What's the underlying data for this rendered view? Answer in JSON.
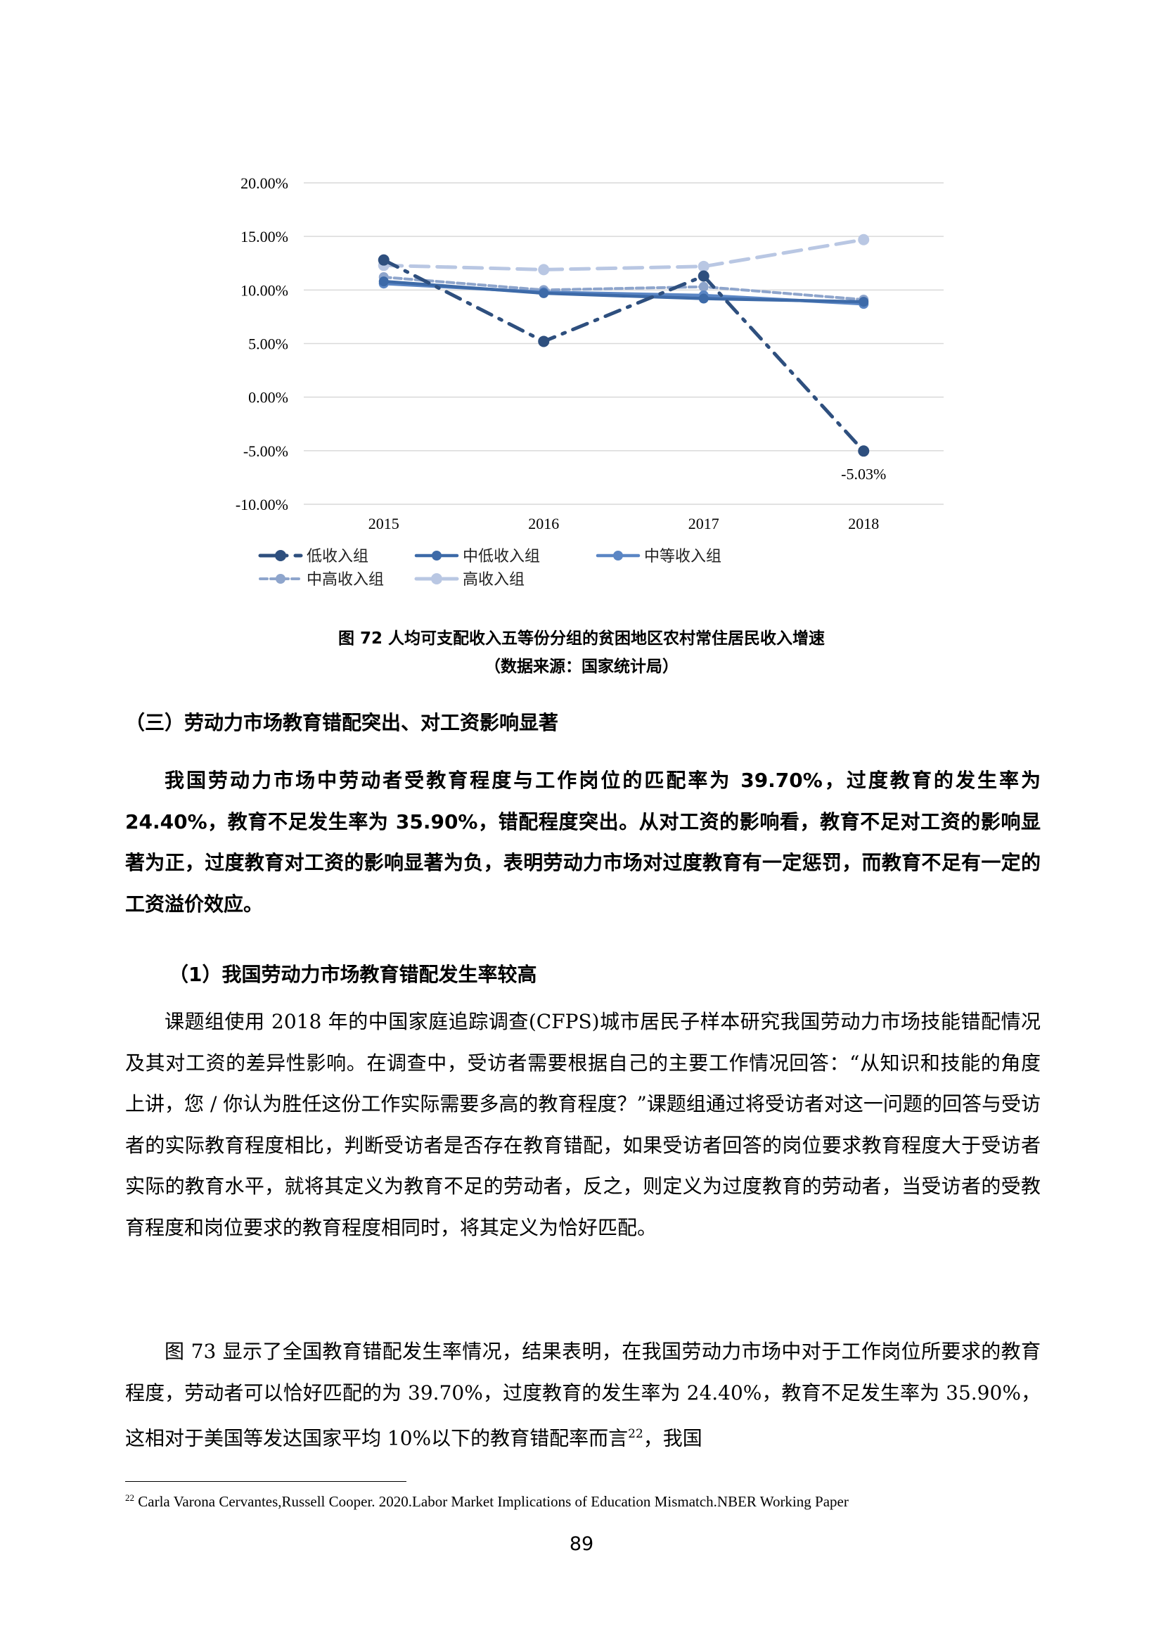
{
  "chart_data": {
    "type": "line",
    "x": [
      "2015",
      "2016",
      "2017",
      "2018"
    ],
    "y_ticks": [
      "20.00%",
      "15.00%",
      "10.00%",
      "5.00%",
      "0.00%",
      "-5.00%",
      "-10.00%"
    ],
    "ylim": [
      -10,
      20
    ],
    "grid": true,
    "legend_position": "bottom",
    "series": [
      {
        "name": "低收入组",
        "values": [
          12.8,
          5.2,
          11.3,
          -5.03
        ],
        "color": "#2e4f7e",
        "style": "dashdot"
      },
      {
        "name": "中低收入组",
        "values": [
          10.8,
          9.7,
          9.2,
          8.9
        ],
        "color": "#3d6aa8",
        "style": "solid"
      },
      {
        "name": "中等收入组",
        "values": [
          10.6,
          9.8,
          9.5,
          8.7
        ],
        "color": "#5b86c4",
        "style": "solid"
      },
      {
        "name": "中高收入组",
        "values": [
          11.2,
          10.0,
          10.3,
          9.1
        ],
        "color": "#8ea5cc",
        "style": "dashed"
      },
      {
        "name": "高收入组",
        "values": [
          12.3,
          11.9,
          12.2,
          14.7
        ],
        "color": "#b9c7e3",
        "style": "longdash"
      }
    ],
    "annotations": [
      {
        "series": 0,
        "index": 3,
        "text": "-5.03%"
      }
    ]
  },
  "figure": {
    "caption": "图  72  人均可支配收入五等份分组的贫困地区农村常住居民收入增速",
    "source": "（数据来源：国家统计局）"
  },
  "section": {
    "heading": "（三）劳动力市场教育错配突出、对工资影响显著",
    "summary": "我国劳动力市场中劳动者受教育程度与工作岗位的匹配率为 39.70%，过度教育的发生率为 24.40%，教育不足发生率为 35.90%，错配程度突出。从对工资的影响看，教育不足对工资的影响显著为正，过度教育对工资的影响显著为负，表明劳动力市场对过度教育有一定惩罚，而教育不足有一定的工资溢价效应。",
    "subheading": "（1）我国劳动力市场教育错配发生率较高",
    "para1": "课题组使用 2018 年的中国家庭追踪调查(CFPS)城市居民子样本研究我国劳动力市场技能错配情况及其对工资的差异性影响。在调查中，受访者需要根据自己的主要工作情况回答：“从知识和技能的角度上讲，您 / 你认为胜任这份工作实际需要多高的教育程度？”课题组通过将受访者对这一问题的回答与受访者的实际教育程度相比，判断受访者是否存在教育错配，如果受访者回答的岗位要求教育程度大于受访者实际的教育水平，就将其定义为教育不足的劳动者，反之，则定义为过度教育的劳动者，当受访者的受教育程度和岗位要求的教育程度相同时，将其定义为恰好匹配。",
    "para2": "图 73 显示了全国教育错配发生率情况，结果表明，在我国劳动力市场中对于工作岗位所要求的教育程度，劳动者可以恰好匹配的为 39.70%，过度教育的发生率为 24.40%，教育不足发生率为 35.90%，这相对于美国等发达国家平均 10%以下的教育错配率而言",
    "para2_sup": "22",
    "para2_end": "，我国"
  },
  "footnote": {
    "mark": "22",
    "text": "Carla Varona Cervantes,Russell Cooper. 2020.Labor Market Implications of Education Mismatch.NBER Working Paper"
  },
  "page_number": "89"
}
